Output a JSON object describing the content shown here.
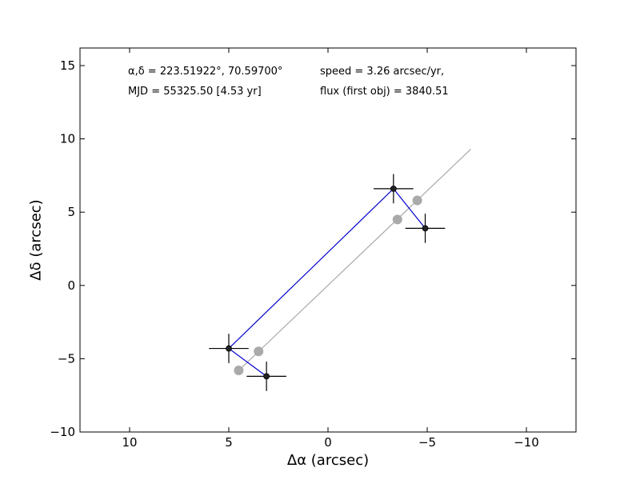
{
  "annotations": {
    "coords": "α,δ = 223.51922°, 70.59700°",
    "mjd": "MJD = 55325.50 [4.53 yr]",
    "speed": "speed = 3.26 arcsec/yr,",
    "flux": "flux (first obj) = 3840.51"
  },
  "chart_data": {
    "type": "scatter",
    "xlabel": "Δα (arcsec)",
    "ylabel": "Δδ (arcsec)",
    "xlim": [
      12.5,
      -12.5
    ],
    "ylim": [
      -10,
      16.2
    ],
    "x_inverted": true,
    "xticks": [
      10,
      5,
      0,
      -5,
      -10
    ],
    "xtick_labels": [
      "10",
      "5",
      "0",
      "−5",
      "−10"
    ],
    "yticks": [
      -10,
      -5,
      0,
      5,
      10,
      15
    ],
    "ytick_labels": [
      "−10",
      "−5",
      "0",
      "5",
      "10",
      "15"
    ],
    "grid": false,
    "series": [
      {
        "kind": "fit-line",
        "color": "#aaaaaa",
        "points": [
          [
            4.5,
            -5.8
          ],
          [
            -7.2,
            9.3
          ]
        ]
      },
      {
        "kind": "model-positions",
        "color": "#aaaaaa",
        "points": [
          [
            4.5,
            -5.8
          ],
          [
            3.5,
            -4.5
          ],
          [
            -3.5,
            4.5
          ],
          [
            -4.5,
            5.8
          ]
        ]
      },
      {
        "kind": "path",
        "color": "#0000cc",
        "points": [
          [
            5.0,
            -4.3
          ],
          [
            3.1,
            -6.2
          ],
          [
            -3.3,
            6.6
          ],
          [
            -4.9,
            3.9
          ]
        ],
        "path_order": [
          1,
          0,
          2,
          3
        ]
      },
      {
        "kind": "measured-positions",
        "color": "#222222",
        "points": [
          [
            5.0,
            -4.3
          ],
          [
            3.1,
            -6.2
          ],
          [
            -3.3,
            6.6
          ],
          [
            -4.9,
            3.9
          ]
        ],
        "xerr": 1.0,
        "yerr": 1.0
      }
    ]
  }
}
